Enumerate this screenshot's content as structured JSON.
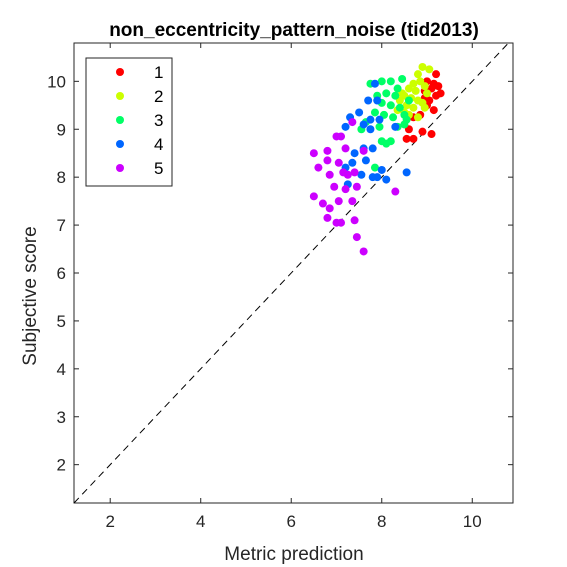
{
  "chart_data": {
    "type": "scatter",
    "title": "non_eccentricity_pattern_noise (tid2013)",
    "xlabel": "Metric prediction",
    "ylabel": "Subjective score",
    "xlim": [
      1.2,
      10.9
    ],
    "ylim": [
      1.2,
      10.8
    ],
    "xticks": [
      2,
      4,
      6,
      8,
      10
    ],
    "yticks": [
      2,
      3,
      4,
      5,
      6,
      7,
      8,
      9,
      10
    ],
    "grid": false,
    "legend_position": "top-left",
    "reference_line": "y = x (dashed)",
    "series": [
      {
        "name": "1",
        "color": "#ff0000",
        "points": [
          [
            9.2,
            10.15
          ],
          [
            9.0,
            10.0
          ],
          [
            9.15,
            9.95
          ],
          [
            9.1,
            9.85
          ],
          [
            8.95,
            9.8
          ],
          [
            9.2,
            9.7
          ],
          [
            9.05,
            9.6
          ],
          [
            9.3,
            9.75
          ],
          [
            9.0,
            9.5
          ],
          [
            9.15,
            9.4
          ],
          [
            8.85,
            9.3
          ],
          [
            8.7,
            9.25
          ],
          [
            8.6,
            9.0
          ],
          [
            8.9,
            8.95
          ],
          [
            9.1,
            8.9
          ],
          [
            8.7,
            8.8
          ],
          [
            8.55,
            8.8
          ],
          [
            9.25,
            9.9
          ],
          [
            8.95,
            9.65
          ]
        ]
      },
      {
        "name": "2",
        "color": "#ccff00",
        "points": [
          [
            8.9,
            10.3
          ],
          [
            9.05,
            10.25
          ],
          [
            8.8,
            10.15
          ],
          [
            8.85,
            10.0
          ],
          [
            8.7,
            9.95
          ],
          [
            8.95,
            9.9
          ],
          [
            8.6,
            9.85
          ],
          [
            8.75,
            9.8
          ],
          [
            8.5,
            9.7
          ],
          [
            8.65,
            9.65
          ],
          [
            8.8,
            9.6
          ],
          [
            8.4,
            9.6
          ],
          [
            8.55,
            9.5
          ],
          [
            8.9,
            9.55
          ],
          [
            8.7,
            9.45
          ],
          [
            8.95,
            9.45
          ],
          [
            8.35,
            9.4
          ],
          [
            8.5,
            9.35
          ],
          [
            8.6,
            9.3
          ],
          [
            8.8,
            9.25
          ],
          [
            9.0,
            9.75
          ],
          [
            8.45,
            9.75
          ]
        ]
      },
      {
        "name": "3",
        "color": "#00ff66",
        "points": [
          [
            7.75,
            9.95
          ],
          [
            8.0,
            10.0
          ],
          [
            8.2,
            10.0
          ],
          [
            8.45,
            10.05
          ],
          [
            7.9,
            9.7
          ],
          [
            8.1,
            9.75
          ],
          [
            8.3,
            9.7
          ],
          [
            8.35,
            9.85
          ],
          [
            8.0,
            9.55
          ],
          [
            8.2,
            9.5
          ],
          [
            8.4,
            9.45
          ],
          [
            7.85,
            9.35
          ],
          [
            8.05,
            9.3
          ],
          [
            8.25,
            9.25
          ],
          [
            8.55,
            9.2
          ],
          [
            7.65,
            9.15
          ],
          [
            7.95,
            9.05
          ],
          [
            8.35,
            9.05
          ],
          [
            8.5,
            9.1
          ],
          [
            7.55,
            9.0
          ],
          [
            8.0,
            8.75
          ],
          [
            8.2,
            8.75
          ],
          [
            8.1,
            8.7
          ],
          [
            7.85,
            8.2
          ],
          [
            8.5,
            9.3
          ],
          [
            8.6,
            9.6
          ]
        ]
      },
      {
        "name": "4",
        "color": "#0066ff",
        "points": [
          [
            7.85,
            9.95
          ],
          [
            7.7,
            9.6
          ],
          [
            7.9,
            9.6
          ],
          [
            7.5,
            9.35
          ],
          [
            7.3,
            9.25
          ],
          [
            7.2,
            9.05
          ],
          [
            7.75,
            9.2
          ],
          [
            7.95,
            9.2
          ],
          [
            7.6,
            9.1
          ],
          [
            8.3,
            9.05
          ],
          [
            7.75,
            9.0
          ],
          [
            7.6,
            8.6
          ],
          [
            7.8,
            8.6
          ],
          [
            7.4,
            8.5
          ],
          [
            7.65,
            8.35
          ],
          [
            7.35,
            8.3
          ],
          [
            7.2,
            8.2
          ],
          [
            8.0,
            8.15
          ],
          [
            8.55,
            8.1
          ],
          [
            7.55,
            8.05
          ],
          [
            7.8,
            8.0
          ],
          [
            7.9,
            8.0
          ],
          [
            8.1,
            7.95
          ],
          [
            7.25,
            7.85
          ]
        ]
      },
      {
        "name": "5",
        "color": "#cc00ff",
        "points": [
          [
            6.5,
            8.5
          ],
          [
            6.8,
            8.55
          ],
          [
            7.35,
            9.15
          ],
          [
            7.1,
            8.85
          ],
          [
            7.2,
            8.6
          ],
          [
            7.0,
            8.85
          ],
          [
            7.6,
            8.55
          ],
          [
            6.6,
            8.2
          ],
          [
            6.8,
            8.35
          ],
          [
            7.05,
            8.3
          ],
          [
            7.15,
            8.1
          ],
          [
            7.25,
            8.05
          ],
          [
            7.4,
            8.1
          ],
          [
            6.85,
            8.05
          ],
          [
            6.95,
            7.8
          ],
          [
            7.2,
            7.75
          ],
          [
            7.45,
            7.8
          ],
          [
            6.5,
            7.6
          ],
          [
            6.7,
            7.45
          ],
          [
            7.05,
            7.5
          ],
          [
            7.35,
            7.5
          ],
          [
            6.85,
            7.35
          ],
          [
            6.8,
            7.15
          ],
          [
            7.0,
            7.05
          ],
          [
            7.1,
            7.05
          ],
          [
            7.4,
            7.1
          ],
          [
            7.45,
            6.75
          ],
          [
            7.6,
            6.45
          ],
          [
            8.3,
            7.7
          ]
        ]
      }
    ]
  }
}
